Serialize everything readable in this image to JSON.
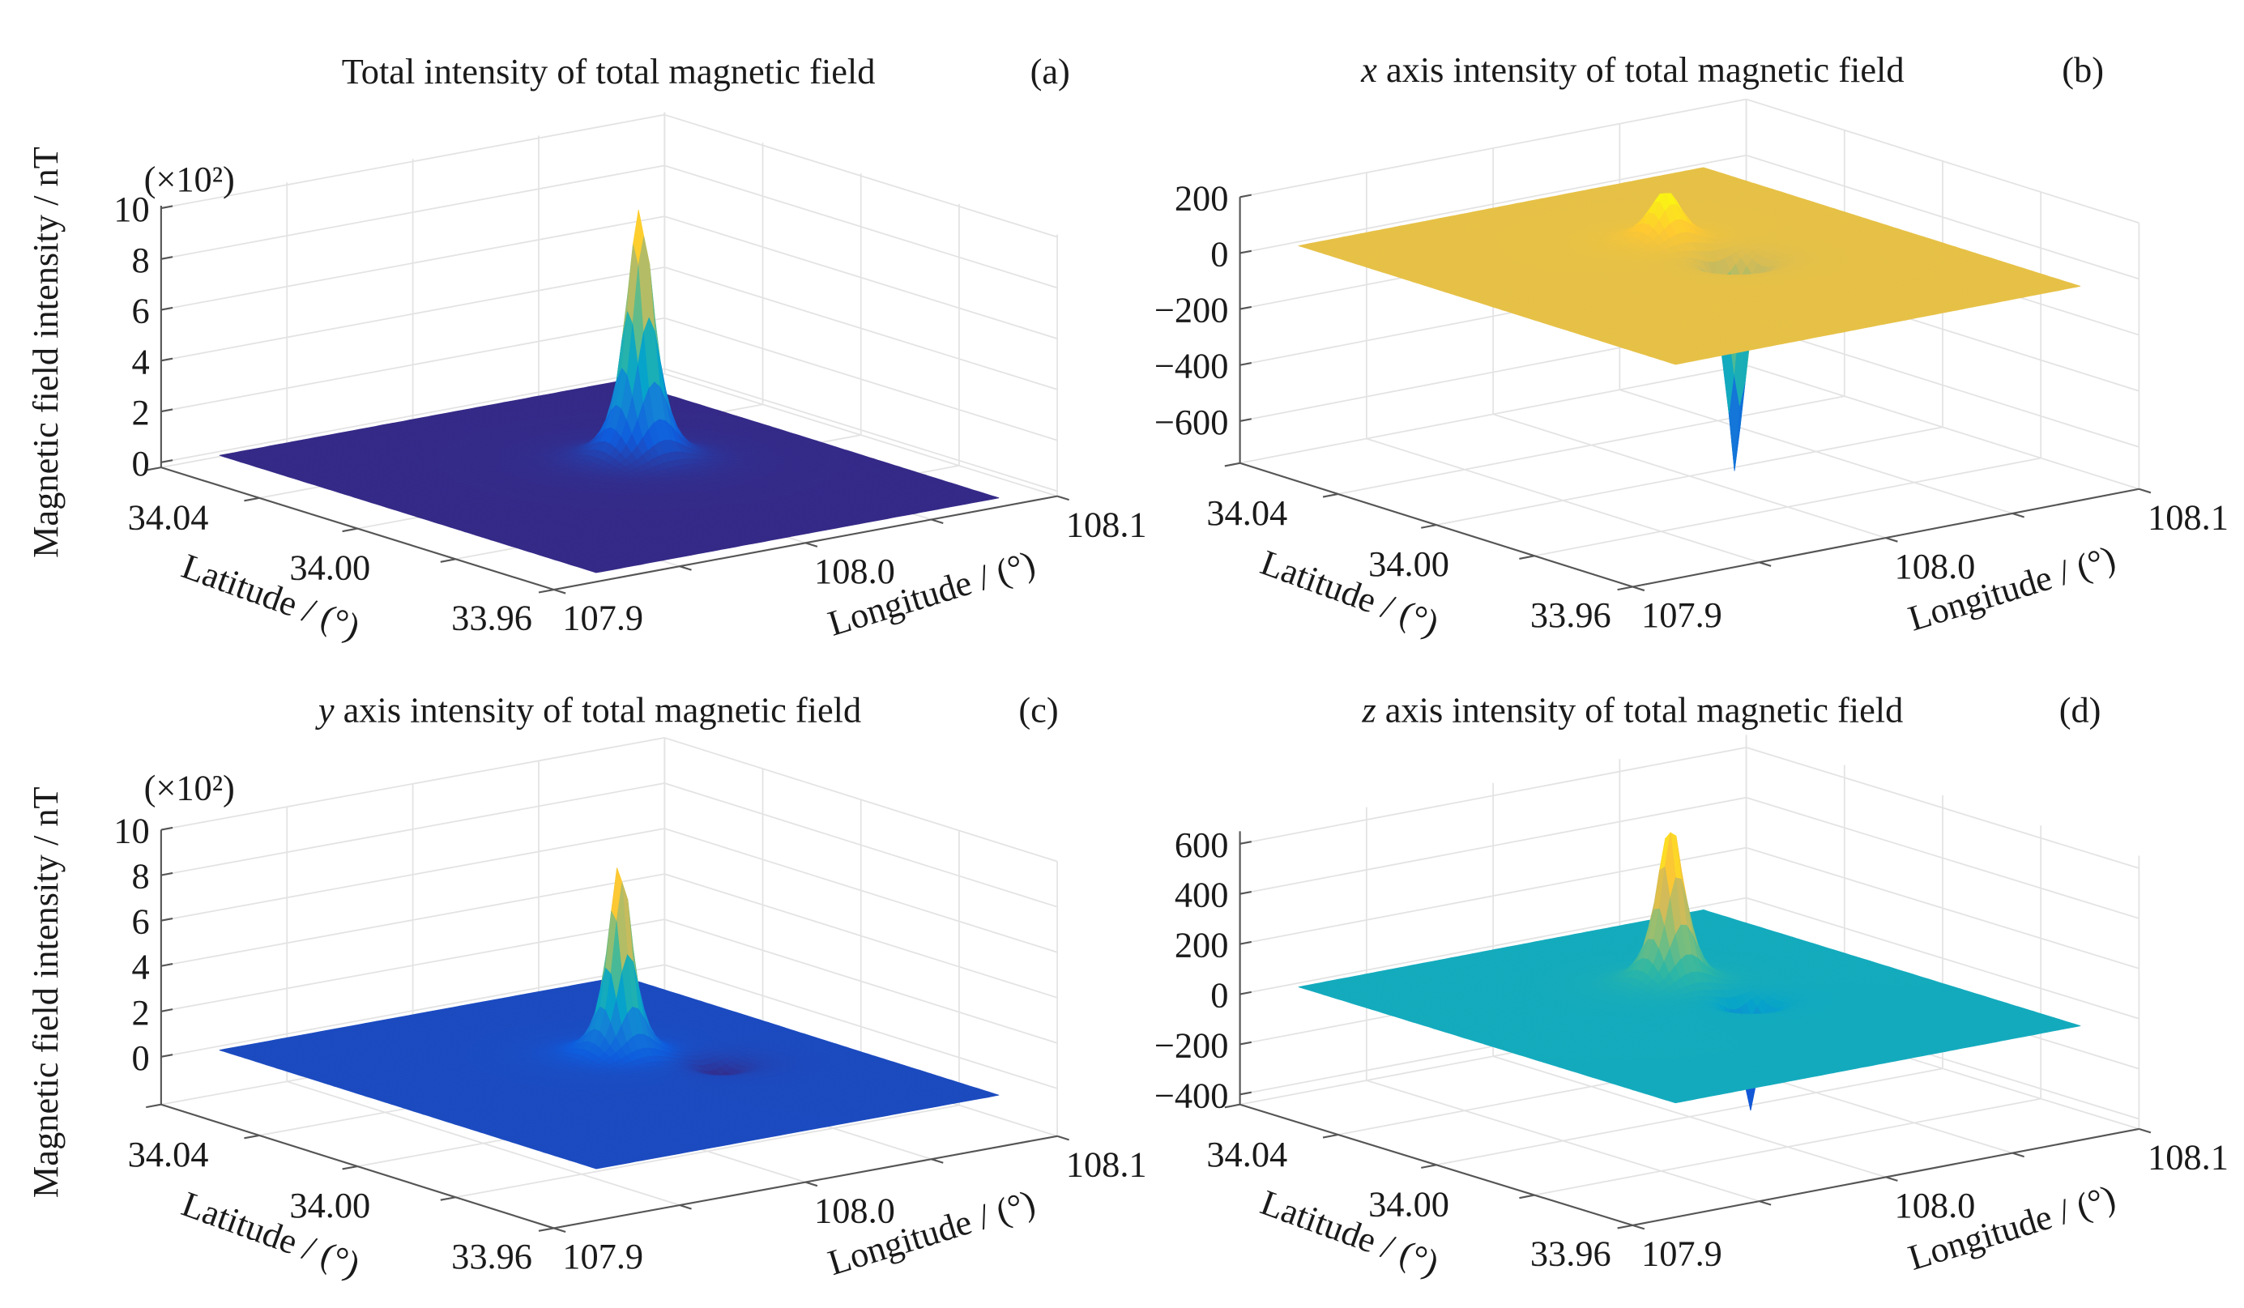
{
  "chart_data": [
    {
      "type": "surface",
      "panel_label": "(a)",
      "title_prefix": "",
      "title": "Total intensity of total magnetic field",
      "zlabel": "Magnetic field intensity / nT",
      "z_multiplier": "(×10²)",
      "zticks": [
        0,
        2,
        4,
        6,
        8,
        10
      ],
      "zlim": [
        -0.2,
        10.1
      ],
      "xlabel": "Longitude / (°)",
      "ylabel": "Latitude / (°)",
      "xlim": [
        107.9,
        108.1
      ],
      "ylim": [
        33.96,
        34.04
      ],
      "xticks": [
        "107.9",
        "108.0",
        "108.1"
      ],
      "yticks": [
        "34.04",
        "34.00",
        "33.96"
      ],
      "background_level": 0,
      "features": [
        {
          "type": "peak",
          "value": 10.0,
          "lon": 108.02,
          "lat": 34.004,
          "radius_deg": 0.007
        }
      ]
    },
    {
      "type": "surface",
      "panel_label": "(b)",
      "title_prefix": "x",
      "title": " axis intensity of total magnetic field",
      "zlabel": "",
      "z_multiplier": "",
      "zticks": [
        200,
        0,
        -200,
        -400,
        -600
      ],
      "zlim": [
        -750,
        200
      ],
      "xlabel": "Longitude / (°)",
      "ylabel": "Latitude / (°)",
      "xlim": [
        107.9,
        108.1
      ],
      "ylim": [
        33.96,
        34.04
      ],
      "xticks": [
        "107.9",
        "108.0",
        "108.1"
      ],
      "yticks": [
        "34.04",
        "34.00",
        "33.96"
      ],
      "background_level": 0,
      "features": [
        {
          "type": "peak",
          "value": 190,
          "lon": 108.012,
          "lat": 34.011,
          "radius_deg": 0.009
        },
        {
          "type": "trough",
          "value": -770,
          "lon": 108.018,
          "lat": 34.0,
          "radius_deg": 0.005
        }
      ]
    },
    {
      "type": "surface",
      "panel_label": "(c)",
      "title_prefix": "y",
      "title": " axis intensity of total magnetic field",
      "zlabel": "Magnetic field intensity / nT",
      "z_multiplier": "(×10²)",
      "zticks": [
        0,
        2,
        4,
        6,
        8,
        10
      ],
      "zlim": [
        -2.1,
        10
      ],
      "xlabel": "Longitude / (°)",
      "ylabel": "Latitude / (°)",
      "xlim": [
        107.9,
        108.1
      ],
      "ylim": [
        33.96,
        34.04
      ],
      "xticks": [
        "107.9",
        "108.0",
        "108.1"
      ],
      "yticks": [
        "34.04",
        "34.00",
        "33.96"
      ],
      "background_level": 0,
      "features": [
        {
          "type": "peak",
          "value": 8.7,
          "lon": 108.016,
          "lat": 34.006,
          "radius_deg": 0.006
        },
        {
          "type": "trough",
          "value": -0.8,
          "lon": 108.036,
          "lat": 33.996,
          "radius_deg": 0.01
        }
      ]
    },
    {
      "type": "surface",
      "panel_label": "(d)",
      "title_prefix": "z",
      "title": " axis intensity of total magnetic field",
      "zlabel": "",
      "z_multiplier": "",
      "zticks": [
        600,
        400,
        200,
        0,
        -200,
        -400
      ],
      "zlim": [
        -440,
        650
      ],
      "xlabel": "Longitude / (°)",
      "ylabel": "Latitude / (°)",
      "xlim": [
        107.9,
        108.1
      ],
      "ylim": [
        33.96,
        34.04
      ],
      "xticks": [
        "107.9",
        "108.0",
        "108.1"
      ],
      "yticks": [
        "34.04",
        "34.00",
        "33.96"
      ],
      "background_level": 0,
      "features": [
        {
          "type": "peak",
          "value": 650,
          "lon": 108.012,
          "lat": 34.01,
          "radius_deg": 0.007
        },
        {
          "type": "trough",
          "value": -450,
          "lon": 108.02,
          "lat": 33.998,
          "radius_deg": 0.005
        }
      ]
    }
  ]
}
